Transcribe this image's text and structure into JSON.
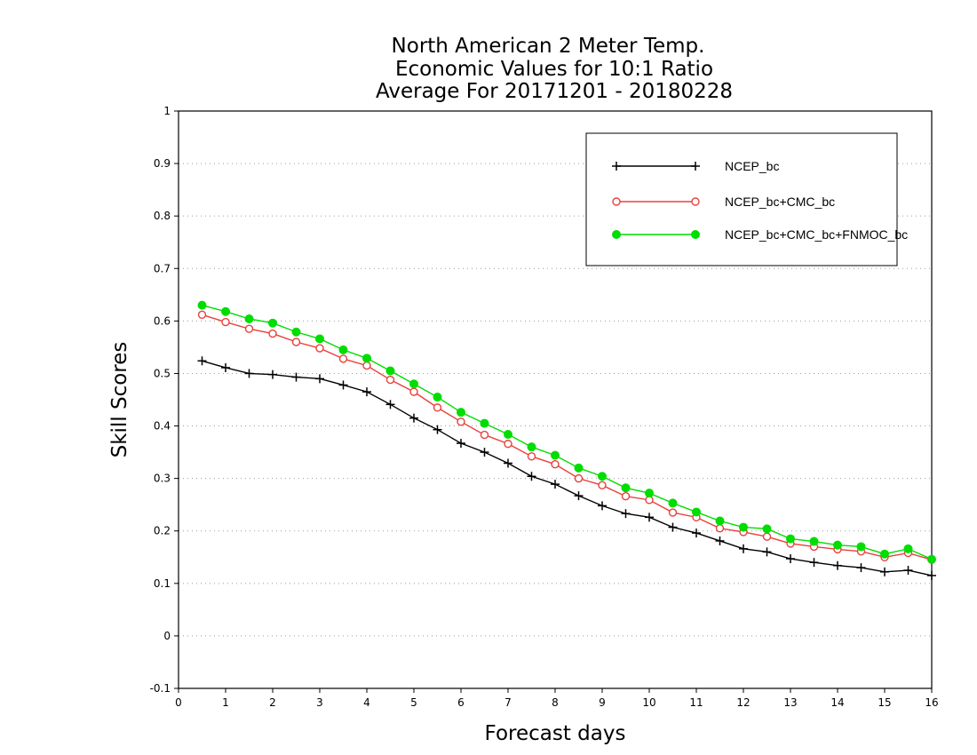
{
  "chart_data": {
    "type": "line",
    "title": [
      "North American 2 Meter Temp.",
      "Economic Values for 10:1 Ratio",
      "Average For 20171201 - 20180228"
    ],
    "xlabel": "Forecast days",
    "ylabel": "Skill Scores",
    "xlim": [
      0,
      16
    ],
    "ylim": [
      -0.1,
      1
    ],
    "xticks": [
      "0",
      "1",
      "2",
      "3",
      "4",
      "5",
      "6",
      "7",
      "8",
      "9",
      "10",
      "11",
      "12",
      "13",
      "14",
      "15",
      "16"
    ],
    "yticks": [
      "-0.1",
      "0",
      "0.1",
      "0.2",
      "0.3",
      "0.4",
      "0.5",
      "0.6",
      "0.7",
      "0.8",
      "0.9",
      "1"
    ],
    "grid": "horizontal-dotted",
    "legend_position": "top-right",
    "x": [
      0.5,
      1,
      1.5,
      2,
      2.5,
      3,
      3.5,
      4,
      4.5,
      5,
      5.5,
      6,
      6.5,
      7,
      7.5,
      8,
      8.5,
      9,
      9.5,
      10,
      10.5,
      11,
      11.5,
      12,
      12.5,
      13,
      13.5,
      14,
      14.5,
      15,
      15.5,
      16
    ],
    "series": [
      {
        "name": "NCEP_bc",
        "color": "#000000",
        "marker": "plus",
        "values": [
          0.524,
          0.511,
          0.5,
          0.498,
          0.493,
          0.49,
          0.478,
          0.465,
          0.441,
          0.415,
          0.393,
          0.367,
          0.35,
          0.329,
          0.304,
          0.289,
          0.267,
          0.248,
          0.233,
          0.226,
          0.207,
          0.196,
          0.181,
          0.166,
          0.16,
          0.147,
          0.14,
          0.134,
          0.13,
          0.122,
          0.125,
          0.115
        ]
      },
      {
        "name": "NCEP_bc+CMC_bc",
        "color": "#e8403c",
        "marker": "open-circle",
        "values": [
          0.612,
          0.598,
          0.585,
          0.576,
          0.56,
          0.548,
          0.528,
          0.515,
          0.488,
          0.465,
          0.435,
          0.408,
          0.383,
          0.366,
          0.342,
          0.327,
          0.3,
          0.287,
          0.266,
          0.259,
          0.235,
          0.226,
          0.205,
          0.198,
          0.189,
          0.176,
          0.17,
          0.165,
          0.161,
          0.15,
          0.158,
          0.145
        ]
      },
      {
        "name": "NCEP_bc+CMC_bc+FNMOC_bc",
        "color": "#00dd00",
        "marker": "filled-circle",
        "values": [
          0.63,
          0.618,
          0.604,
          0.596,
          0.579,
          0.566,
          0.545,
          0.529,
          0.505,
          0.48,
          0.455,
          0.426,
          0.405,
          0.384,
          0.36,
          0.344,
          0.32,
          0.304,
          0.282,
          0.272,
          0.253,
          0.236,
          0.219,
          0.207,
          0.204,
          0.185,
          0.18,
          0.173,
          0.17,
          0.156,
          0.166,
          0.146
        ]
      }
    ]
  }
}
